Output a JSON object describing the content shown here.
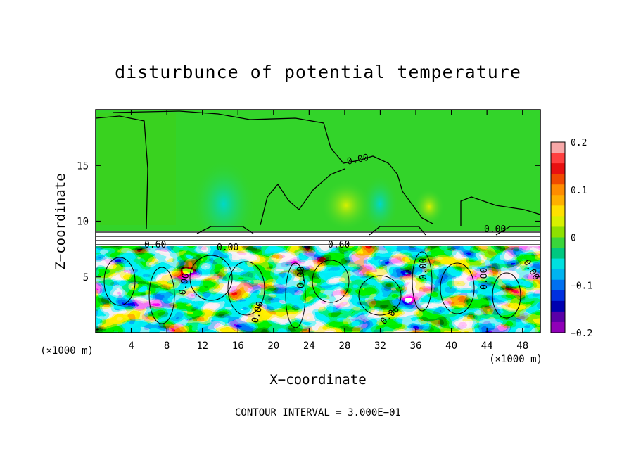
{
  "chart_data": {
    "type": "heatmap",
    "title": "disturbunce of potential temperature",
    "xlabel": "X−coordinate",
    "ylabel": "Z−coordinate",
    "x_unit": "(×1000 m)",
    "xlim": [
      0,
      50
    ],
    "ylim": [
      0,
      20
    ],
    "x_ticks": [
      4,
      8,
      12,
      16,
      20,
      24,
      28,
      32,
      36,
      40,
      44,
      48
    ],
    "y_ticks": [
      5,
      10,
      15
    ],
    "colorbar": {
      "range": [
        -0.2,
        0.2
      ],
      "labels": [
        "0.2",
        "0.1",
        "0",
        "−0.1",
        "−0.2"
      ],
      "label_values": [
        0.2,
        0.1,
        0,
        -0.1,
        -0.2
      ],
      "colors": [
        "#f7a8a8",
        "#ff4040",
        "#e81010",
        "#f04a00",
        "#ff8c00",
        "#ffb000",
        "#ffe000",
        "#d8f000",
        "#8ee000",
        "#3ad63a",
        "#00c880",
        "#00e0e0",
        "#00b4f0",
        "#0070f0",
        "#0030e0",
        "#0000b0",
        "#5a00a8",
        "#9000b8"
      ]
    },
    "contour_labels": [
      "0.00",
      "0.00",
      "0.60",
      "0.00",
      "0.60",
      "0.00",
      "0.00",
      "0.00",
      "0.00",
      "0.00",
      "0.00",
      "0.00",
      "0.00"
    ],
    "contour_interval": "CONTOUR INTERVAL = 3.000E−01"
  }
}
